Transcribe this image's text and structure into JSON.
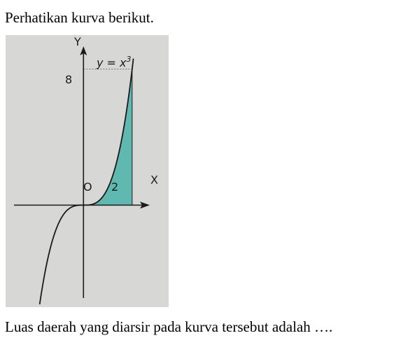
{
  "problem": {
    "intro": "Perhatikan kurva berikut.",
    "question": "Luas daerah yang diarsir pada kurva tersebut adalah …."
  },
  "figure": {
    "y_axis_label": "Y",
    "x_axis_label": "X",
    "origin_label": "O",
    "x_tick_label": "2",
    "y_tick_label": "8",
    "curve_label_lhs": "y = x",
    "curve_label_exp": "3",
    "shade_color": "#5fb9b0",
    "curve_color": "#1a1a1a"
  },
  "chart_data": {
    "type": "line",
    "series": [
      {
        "name": "y = x3",
        "function": "x^3",
        "x": [
          -1.8,
          -1.5,
          -1,
          -0.5,
          0,
          0.5,
          1,
          1.5,
          2,
          2.05
        ],
        "y": [
          -5.83,
          -3.38,
          -1,
          -0.125,
          0,
          0.125,
          1,
          3.38,
          8,
          8.62
        ]
      }
    ],
    "shaded_region": {
      "from_x": 0,
      "to_x": 2,
      "between": "curve and x-axis"
    },
    "x_ticks": [
      2
    ],
    "y_ticks": [
      8
    ],
    "xlim": [
      -3.2,
      3.5
    ],
    "ylim": [
      -6.0,
      10.0
    ],
    "grid": false
  }
}
